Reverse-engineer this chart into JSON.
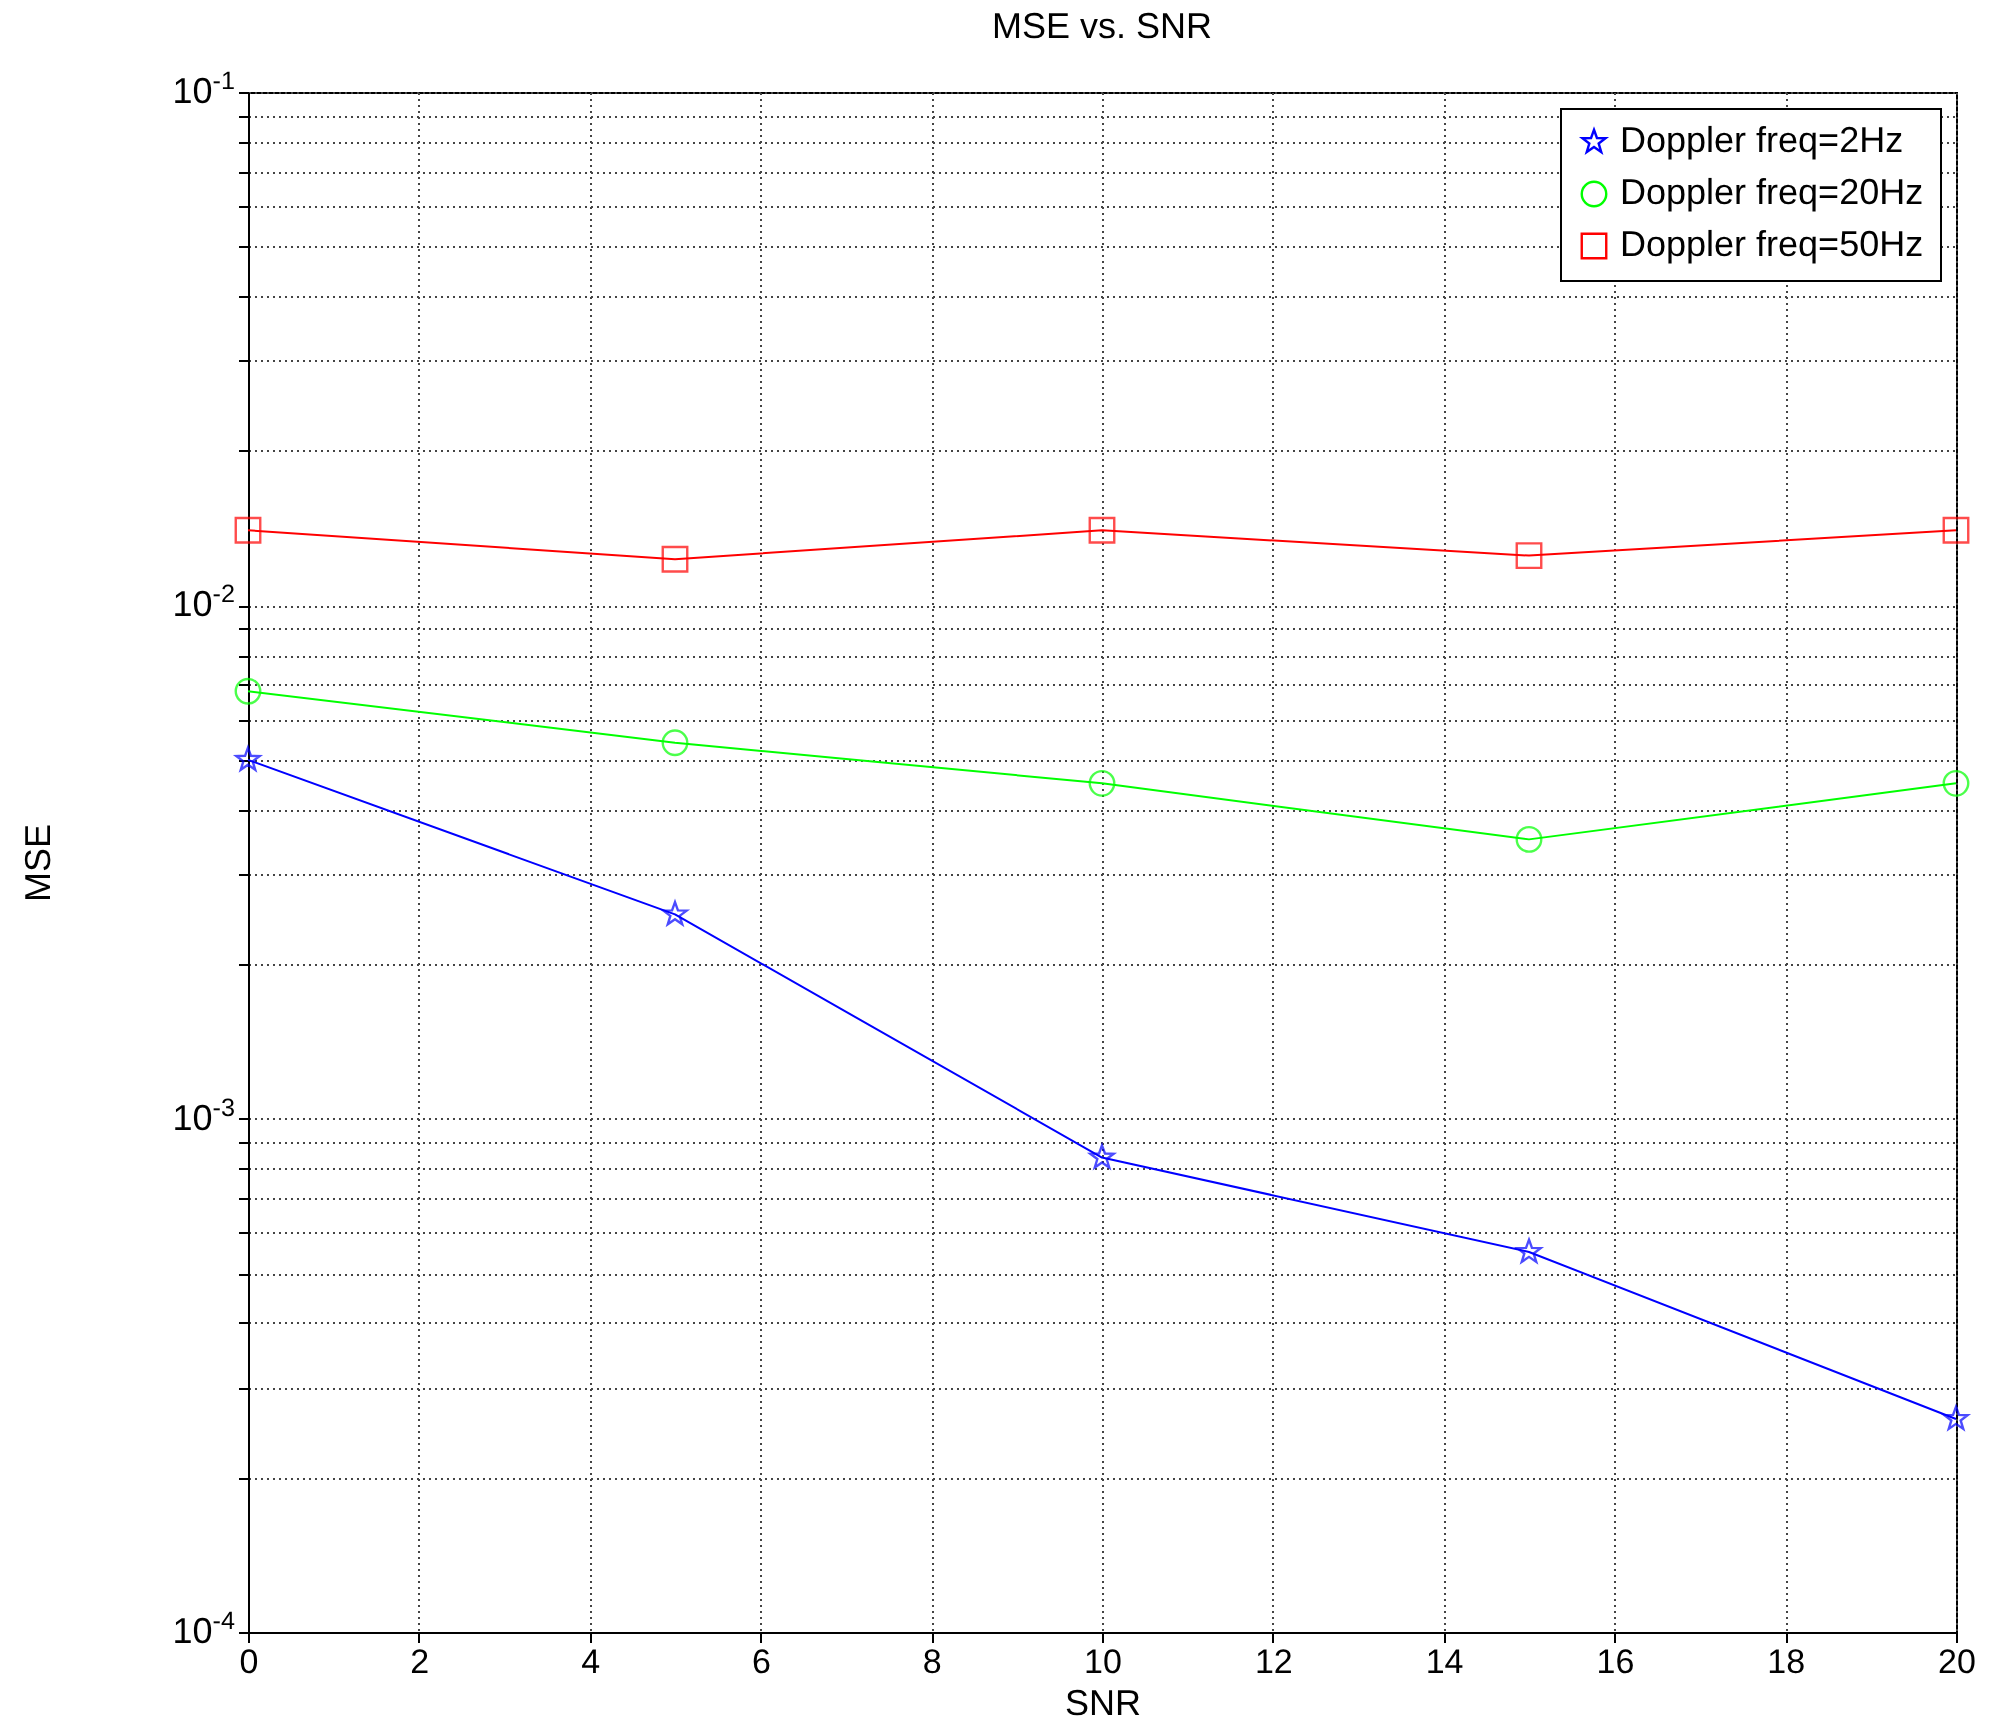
{
  "chart_data": {
    "type": "line",
    "title": "MSE vs. SNR",
    "xlabel": "SNR",
    "ylabel": "MSE",
    "x": [
      0,
      5,
      10,
      15,
      20
    ],
    "series": [
      {
        "name": "Doppler freq=2Hz",
        "color": "#0000ff",
        "marker": "star",
        "values": [
          0.005,
          0.0025,
          0.00084,
          0.00055,
          0.00026
        ]
      },
      {
        "name": "Doppler freq=20Hz",
        "color": "#00ff00",
        "marker": "circle",
        "values": [
          0.0068,
          0.0054,
          0.0045,
          0.0035,
          0.0045
        ]
      },
      {
        "name": "Doppler freq=50Hz",
        "color": "#ff0000",
        "marker": "square",
        "values": [
          0.014,
          0.0123,
          0.014,
          0.0125,
          0.014
        ]
      }
    ],
    "log": "y",
    "xlim": [
      0,
      20
    ],
    "xticks": [
      0,
      2,
      4,
      6,
      8,
      10,
      12,
      14,
      16,
      18,
      20
    ],
    "ylim": [
      0.0001,
      0.1
    ],
    "yticks": [
      {
        "value": 0.0001,
        "label": "10$^{-4}$"
      },
      {
        "value": 0.0002,
        "label": null
      },
      {
        "value": 0.0003,
        "label": null
      },
      {
        "value": 0.0004,
        "label": null
      },
      {
        "value": 0.0005,
        "label": null
      },
      {
        "value": 0.0006,
        "label": null
      },
      {
        "value": 0.0007,
        "label": null
      },
      {
        "value": 0.0008,
        "label": null
      },
      {
        "value": 0.0009,
        "label": null
      },
      {
        "value": 0.001,
        "label": "10$^{-3}$"
      },
      {
        "value": 0.002,
        "label": null
      },
      {
        "value": 0.003,
        "label": null
      },
      {
        "value": 0.004,
        "label": null
      },
      {
        "value": 0.005,
        "label": null
      },
      {
        "value": 0.006,
        "label": null
      },
      {
        "value": 0.007,
        "label": null
      },
      {
        "value": 0.008,
        "label": null
      },
      {
        "value": 0.009,
        "label": null
      },
      {
        "value": 0.01,
        "label": "10$^{-2}$"
      },
      {
        "value": 0.02,
        "label": null
      },
      {
        "value": 0.03,
        "label": null
      },
      {
        "value": 0.04,
        "label": null
      },
      {
        "value": 0.05,
        "label": null
      },
      {
        "value": 0.06,
        "label": null
      },
      {
        "value": 0.07,
        "label": null
      },
      {
        "value": 0.08,
        "label": null
      },
      {
        "value": 0.09,
        "label": null
      },
      {
        "value": 0.1,
        "label": "10$^{-1}$"
      }
    ],
    "grid": true,
    "legend": "top right",
    "line_style": "solid"
  }
}
